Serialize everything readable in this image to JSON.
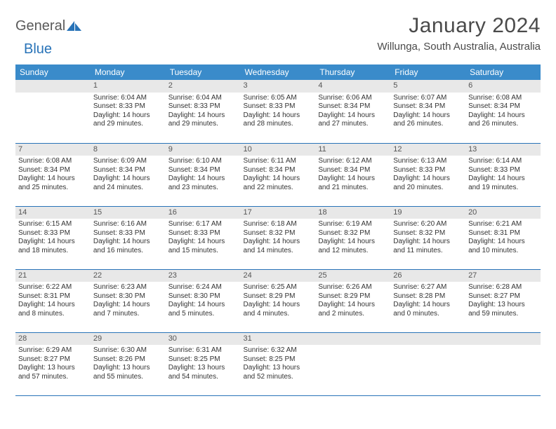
{
  "brand": {
    "part1": "General",
    "part2": "Blue"
  },
  "title": "January 2024",
  "location": "Willunga, South Australia, Australia",
  "colors": {
    "header_bg": "#3a8bca",
    "daynum_bg": "#e8e8e8",
    "rule": "#2873b8"
  },
  "weekdays": [
    "Sunday",
    "Monday",
    "Tuesday",
    "Wednesday",
    "Thursday",
    "Friday",
    "Saturday"
  ],
  "weeks": [
    [
      null,
      {
        "n": "1",
        "sr": "Sunrise: 6:04 AM",
        "ss": "Sunset: 8:33 PM",
        "dl1": "Daylight: 14 hours",
        "dl2": "and 29 minutes."
      },
      {
        "n": "2",
        "sr": "Sunrise: 6:04 AM",
        "ss": "Sunset: 8:33 PM",
        "dl1": "Daylight: 14 hours",
        "dl2": "and 29 minutes."
      },
      {
        "n": "3",
        "sr": "Sunrise: 6:05 AM",
        "ss": "Sunset: 8:33 PM",
        "dl1": "Daylight: 14 hours",
        "dl2": "and 28 minutes."
      },
      {
        "n": "4",
        "sr": "Sunrise: 6:06 AM",
        "ss": "Sunset: 8:34 PM",
        "dl1": "Daylight: 14 hours",
        "dl2": "and 27 minutes."
      },
      {
        "n": "5",
        "sr": "Sunrise: 6:07 AM",
        "ss": "Sunset: 8:34 PM",
        "dl1": "Daylight: 14 hours",
        "dl2": "and 26 minutes."
      },
      {
        "n": "6",
        "sr": "Sunrise: 6:08 AM",
        "ss": "Sunset: 8:34 PM",
        "dl1": "Daylight: 14 hours",
        "dl2": "and 26 minutes."
      }
    ],
    [
      {
        "n": "7",
        "sr": "Sunrise: 6:08 AM",
        "ss": "Sunset: 8:34 PM",
        "dl1": "Daylight: 14 hours",
        "dl2": "and 25 minutes."
      },
      {
        "n": "8",
        "sr": "Sunrise: 6:09 AM",
        "ss": "Sunset: 8:34 PM",
        "dl1": "Daylight: 14 hours",
        "dl2": "and 24 minutes."
      },
      {
        "n": "9",
        "sr": "Sunrise: 6:10 AM",
        "ss": "Sunset: 8:34 PM",
        "dl1": "Daylight: 14 hours",
        "dl2": "and 23 minutes."
      },
      {
        "n": "10",
        "sr": "Sunrise: 6:11 AM",
        "ss": "Sunset: 8:34 PM",
        "dl1": "Daylight: 14 hours",
        "dl2": "and 22 minutes."
      },
      {
        "n": "11",
        "sr": "Sunrise: 6:12 AM",
        "ss": "Sunset: 8:34 PM",
        "dl1": "Daylight: 14 hours",
        "dl2": "and 21 minutes."
      },
      {
        "n": "12",
        "sr": "Sunrise: 6:13 AM",
        "ss": "Sunset: 8:33 PM",
        "dl1": "Daylight: 14 hours",
        "dl2": "and 20 minutes."
      },
      {
        "n": "13",
        "sr": "Sunrise: 6:14 AM",
        "ss": "Sunset: 8:33 PM",
        "dl1": "Daylight: 14 hours",
        "dl2": "and 19 minutes."
      }
    ],
    [
      {
        "n": "14",
        "sr": "Sunrise: 6:15 AM",
        "ss": "Sunset: 8:33 PM",
        "dl1": "Daylight: 14 hours",
        "dl2": "and 18 minutes."
      },
      {
        "n": "15",
        "sr": "Sunrise: 6:16 AM",
        "ss": "Sunset: 8:33 PM",
        "dl1": "Daylight: 14 hours",
        "dl2": "and 16 minutes."
      },
      {
        "n": "16",
        "sr": "Sunrise: 6:17 AM",
        "ss": "Sunset: 8:33 PM",
        "dl1": "Daylight: 14 hours",
        "dl2": "and 15 minutes."
      },
      {
        "n": "17",
        "sr": "Sunrise: 6:18 AM",
        "ss": "Sunset: 8:32 PM",
        "dl1": "Daylight: 14 hours",
        "dl2": "and 14 minutes."
      },
      {
        "n": "18",
        "sr": "Sunrise: 6:19 AM",
        "ss": "Sunset: 8:32 PM",
        "dl1": "Daylight: 14 hours",
        "dl2": "and 12 minutes."
      },
      {
        "n": "19",
        "sr": "Sunrise: 6:20 AM",
        "ss": "Sunset: 8:32 PM",
        "dl1": "Daylight: 14 hours",
        "dl2": "and 11 minutes."
      },
      {
        "n": "20",
        "sr": "Sunrise: 6:21 AM",
        "ss": "Sunset: 8:31 PM",
        "dl1": "Daylight: 14 hours",
        "dl2": "and 10 minutes."
      }
    ],
    [
      {
        "n": "21",
        "sr": "Sunrise: 6:22 AM",
        "ss": "Sunset: 8:31 PM",
        "dl1": "Daylight: 14 hours",
        "dl2": "and 8 minutes."
      },
      {
        "n": "22",
        "sr": "Sunrise: 6:23 AM",
        "ss": "Sunset: 8:30 PM",
        "dl1": "Daylight: 14 hours",
        "dl2": "and 7 minutes."
      },
      {
        "n": "23",
        "sr": "Sunrise: 6:24 AM",
        "ss": "Sunset: 8:30 PM",
        "dl1": "Daylight: 14 hours",
        "dl2": "and 5 minutes."
      },
      {
        "n": "24",
        "sr": "Sunrise: 6:25 AM",
        "ss": "Sunset: 8:29 PM",
        "dl1": "Daylight: 14 hours",
        "dl2": "and 4 minutes."
      },
      {
        "n": "25",
        "sr": "Sunrise: 6:26 AM",
        "ss": "Sunset: 8:29 PM",
        "dl1": "Daylight: 14 hours",
        "dl2": "and 2 minutes."
      },
      {
        "n": "26",
        "sr": "Sunrise: 6:27 AM",
        "ss": "Sunset: 8:28 PM",
        "dl1": "Daylight: 14 hours",
        "dl2": "and 0 minutes."
      },
      {
        "n": "27",
        "sr": "Sunrise: 6:28 AM",
        "ss": "Sunset: 8:27 PM",
        "dl1": "Daylight: 13 hours",
        "dl2": "and 59 minutes."
      }
    ],
    [
      {
        "n": "28",
        "sr": "Sunrise: 6:29 AM",
        "ss": "Sunset: 8:27 PM",
        "dl1": "Daylight: 13 hours",
        "dl2": "and 57 minutes."
      },
      {
        "n": "29",
        "sr": "Sunrise: 6:30 AM",
        "ss": "Sunset: 8:26 PM",
        "dl1": "Daylight: 13 hours",
        "dl2": "and 55 minutes."
      },
      {
        "n": "30",
        "sr": "Sunrise: 6:31 AM",
        "ss": "Sunset: 8:25 PM",
        "dl1": "Daylight: 13 hours",
        "dl2": "and 54 minutes."
      },
      {
        "n": "31",
        "sr": "Sunrise: 6:32 AM",
        "ss": "Sunset: 8:25 PM",
        "dl1": "Daylight: 13 hours",
        "dl2": "and 52 minutes."
      },
      null,
      null,
      null
    ]
  ]
}
